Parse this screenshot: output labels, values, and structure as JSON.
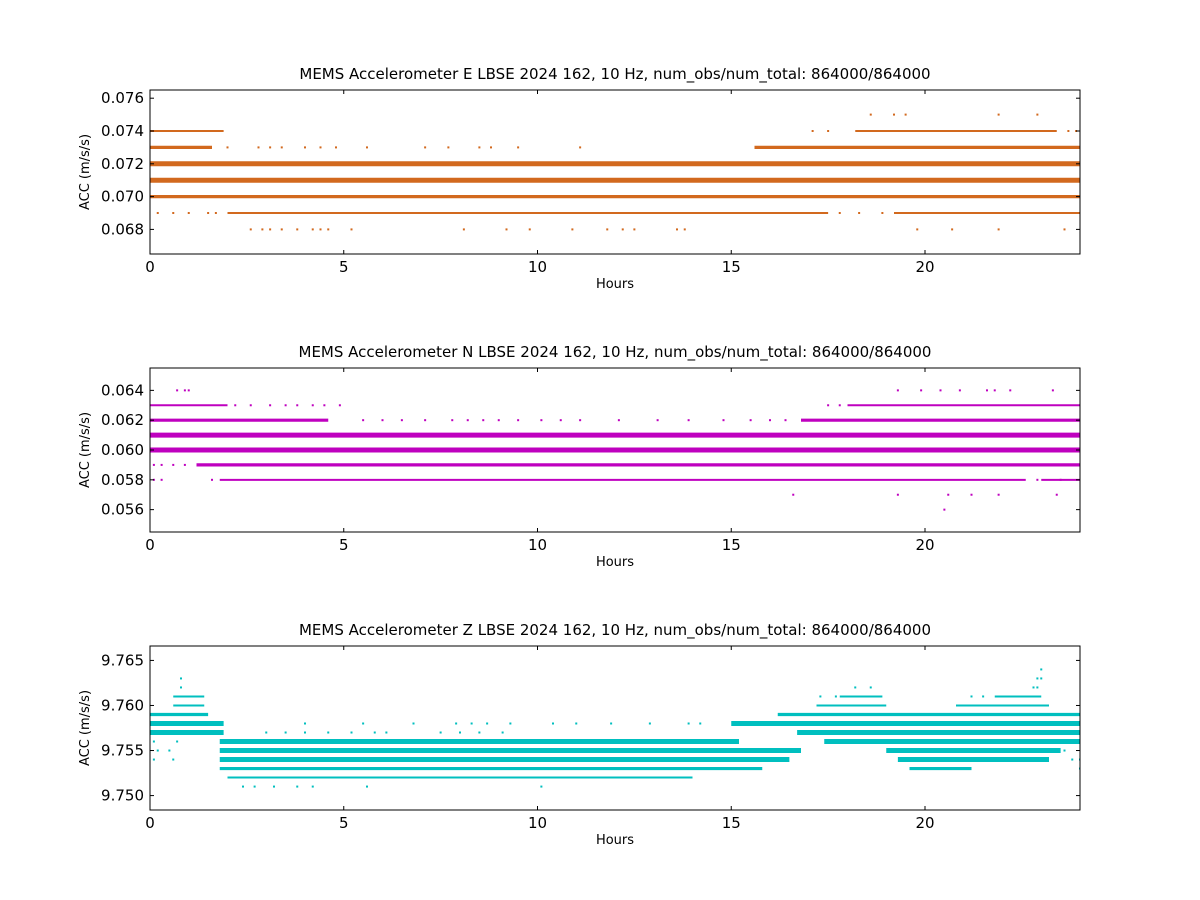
{
  "chart_data": [
    {
      "type": "scatter",
      "title": "MEMS Accelerometer E LBSE 2024 162, 10 Hz, num_obs/num_total: 864000/864000",
      "xlabel": "Hours",
      "ylabel": "ACC (m/s/s)",
      "xlim": [
        0,
        24
      ],
      "ylim": [
        0.0665,
        0.0765
      ],
      "xticks": [
        0,
        5,
        10,
        15,
        20
      ],
      "yticks": [
        0.068,
        0.07,
        0.072,
        0.074,
        0.076
      ],
      "xtick_labels": [
        "0",
        "5",
        "10",
        "15",
        "20"
      ],
      "ytick_labels": [
        "0.068",
        "0.070",
        "0.072",
        "0.074",
        "0.076"
      ],
      "color": "#d2691e",
      "grid": false,
      "series": [
        {
          "levels": [
            {
              "y": 0.071,
              "segments": [
                [
                  0,
                  24
                ]
              ],
              "weight": "heavy"
            },
            {
              "y": 0.072,
              "segments": [
                [
                  0,
                  24
                ]
              ],
              "weight": "heavy"
            },
            {
              "y": 0.07,
              "segments": [
                [
                  0,
                  24
                ]
              ],
              "weight": "medium"
            },
            {
              "y": 0.073,
              "segments": [
                [
                  0,
                  1.6
                ],
                [
                  15.6,
                  24
                ]
              ],
              "weight": "medium"
            },
            {
              "y": 0.069,
              "segments": [
                [
                  2.0,
                  17.5
                ],
                [
                  19.2,
                  24
                ]
              ],
              "weight": "light"
            },
            {
              "y": 0.074,
              "segments": [
                [
                  0,
                  1.9
                ],
                [
                  18.2,
                  23.4
                ]
              ],
              "weight": "light"
            }
          ],
          "points": [
            [
              0.2,
              0.069
            ],
            [
              0.6,
              0.069
            ],
            [
              1.0,
              0.069
            ],
            [
              1.5,
              0.069
            ],
            [
              1.7,
              0.069
            ],
            [
              17.8,
              0.069
            ],
            [
              18.3,
              0.069
            ],
            [
              18.9,
              0.069
            ],
            [
              2.0,
              0.073
            ],
            [
              2.8,
              0.073
            ],
            [
              3.1,
              0.073
            ],
            [
              3.4,
              0.073
            ],
            [
              4.0,
              0.073
            ],
            [
              4.4,
              0.073
            ],
            [
              4.8,
              0.073
            ],
            [
              5.6,
              0.073
            ],
            [
              7.1,
              0.073
            ],
            [
              7.7,
              0.073
            ],
            [
              8.5,
              0.073
            ],
            [
              8.8,
              0.073
            ],
            [
              9.5,
              0.073
            ],
            [
              11.1,
              0.073
            ],
            [
              17.1,
              0.074
            ],
            [
              17.5,
              0.074
            ],
            [
              23.7,
              0.074
            ],
            [
              23.9,
              0.074
            ],
            [
              18.6,
              0.075
            ],
            [
              19.2,
              0.075
            ],
            [
              19.5,
              0.075
            ],
            [
              21.9,
              0.075
            ],
            [
              22.9,
              0.075
            ],
            [
              2.6,
              0.068
            ],
            [
              2.9,
              0.068
            ],
            [
              3.1,
              0.068
            ],
            [
              3.4,
              0.068
            ],
            [
              3.8,
              0.068
            ],
            [
              4.2,
              0.068
            ],
            [
              4.4,
              0.068
            ],
            [
              4.6,
              0.068
            ],
            [
              5.2,
              0.068
            ],
            [
              8.1,
              0.068
            ],
            [
              9.2,
              0.068
            ],
            [
              9.8,
              0.068
            ],
            [
              10.9,
              0.068
            ],
            [
              11.8,
              0.068
            ],
            [
              12.2,
              0.068
            ],
            [
              12.5,
              0.068
            ],
            [
              13.6,
              0.068
            ],
            [
              13.8,
              0.068
            ],
            [
              19.8,
              0.068
            ],
            [
              20.7,
              0.068
            ],
            [
              21.9,
              0.068
            ],
            [
              23.6,
              0.068
            ]
          ]
        }
      ]
    },
    {
      "type": "scatter",
      "title": "MEMS Accelerometer N LBSE 2024 162, 10 Hz, num_obs/num_total: 864000/864000",
      "xlabel": "Hours",
      "ylabel": "ACC (m/s/s)",
      "xlim": [
        0,
        24
      ],
      "ylim": [
        0.0545,
        0.0655
      ],
      "xticks": [
        0,
        5,
        10,
        15,
        20
      ],
      "yticks": [
        0.056,
        0.058,
        0.06,
        0.062,
        0.064
      ],
      "xtick_labels": [
        "0",
        "5",
        "10",
        "15",
        "20"
      ],
      "ytick_labels": [
        "0.056",
        "0.058",
        "0.060",
        "0.062",
        "0.064"
      ],
      "color": "#bf00bf",
      "grid": false,
      "series": [
        {
          "levels": [
            {
              "y": 0.06,
              "segments": [
                [
                  0,
                  24
                ]
              ],
              "weight": "heavy"
            },
            {
              "y": 0.061,
              "segments": [
                [
                  0,
                  24
                ]
              ],
              "weight": "heavy"
            },
            {
              "y": 0.059,
              "segments": [
                [
                  1.2,
                  24
                ]
              ],
              "weight": "medium"
            },
            {
              "y": 0.062,
              "segments": [
                [
                  0,
                  4.6
                ],
                [
                  16.8,
                  24
                ]
              ],
              "weight": "medium"
            },
            {
              "y": 0.058,
              "segments": [
                [
                  1.8,
                  22.6
                ],
                [
                  23.0,
                  24
                ]
              ],
              "weight": "light"
            },
            {
              "y": 0.063,
              "segments": [
                [
                  0,
                  2.0
                ],
                [
                  18.0,
                  24
                ]
              ],
              "weight": "light"
            }
          ],
          "points": [
            [
              0.1,
              0.059
            ],
            [
              0.3,
              0.059
            ],
            [
              0.6,
              0.059
            ],
            [
              0.9,
              0.059
            ],
            [
              0.1,
              0.058
            ],
            [
              0.3,
              0.058
            ],
            [
              1.6,
              0.058
            ],
            [
              22.9,
              0.058
            ],
            [
              23.5,
              0.058
            ],
            [
              0.7,
              0.064
            ],
            [
              0.9,
              0.064
            ],
            [
              1.0,
              0.064
            ],
            [
              19.3,
              0.064
            ],
            [
              19.9,
              0.064
            ],
            [
              20.4,
              0.064
            ],
            [
              20.9,
              0.064
            ],
            [
              21.6,
              0.064
            ],
            [
              21.8,
              0.064
            ],
            [
              22.2,
              0.064
            ],
            [
              23.3,
              0.064
            ],
            [
              2.2,
              0.063
            ],
            [
              2.6,
              0.063
            ],
            [
              3.1,
              0.063
            ],
            [
              3.5,
              0.063
            ],
            [
              3.8,
              0.063
            ],
            [
              4.2,
              0.063
            ],
            [
              4.5,
              0.063
            ],
            [
              4.9,
              0.063
            ],
            [
              17.5,
              0.063
            ],
            [
              17.8,
              0.063
            ],
            [
              5.5,
              0.062
            ],
            [
              6.0,
              0.062
            ],
            [
              6.5,
              0.062
            ],
            [
              7.1,
              0.062
            ],
            [
              7.8,
              0.062
            ],
            [
              8.2,
              0.062
            ],
            [
              8.6,
              0.062
            ],
            [
              9.0,
              0.062
            ],
            [
              9.5,
              0.062
            ],
            [
              10.1,
              0.062
            ],
            [
              10.6,
              0.062
            ],
            [
              11.1,
              0.062
            ],
            [
              12.1,
              0.062
            ],
            [
              13.1,
              0.062
            ],
            [
              13.9,
              0.062
            ],
            [
              14.8,
              0.062
            ],
            [
              15.5,
              0.062
            ],
            [
              16.0,
              0.062
            ],
            [
              16.4,
              0.062
            ],
            [
              16.6,
              0.057
            ],
            [
              19.3,
              0.057
            ],
            [
              20.6,
              0.057
            ],
            [
              21.2,
              0.057
            ],
            [
              21.9,
              0.057
            ],
            [
              23.4,
              0.057
            ],
            [
              20.5,
              0.056
            ]
          ]
        }
      ]
    },
    {
      "type": "scatter",
      "title": "MEMS Accelerometer Z LBSE 2024 162, 10 Hz, num_obs/num_total: 864000/864000",
      "xlabel": "Hours",
      "ylabel": "ACC (m/s/s)",
      "xlim": [
        0,
        24
      ],
      "ylim": [
        9.7484,
        9.7666
      ],
      "xticks": [
        0,
        5,
        10,
        15,
        20
      ],
      "yticks": [
        9.75,
        9.755,
        9.76,
        9.765
      ],
      "xtick_labels": [
        "0",
        "5",
        "10",
        "15",
        "20"
      ],
      "ytick_labels": [
        "9.750",
        "9.755",
        "9.760",
        "9.765"
      ],
      "color": "#00bfbf",
      "grid": false,
      "series": [
        {
          "levels": [
            {
              "y": 9.755,
              "segments": [
                [
                  1.8,
                  16.8
                ],
                [
                  19.0,
                  23.5
                ]
              ],
              "weight": "heavy"
            },
            {
              "y": 9.754,
              "segments": [
                [
                  1.8,
                  16.5
                ],
                [
                  19.3,
                  23.2
                ]
              ],
              "weight": "heavy"
            },
            {
              "y": 9.756,
              "segments": [
                [
                  1.8,
                  15.2
                ],
                [
                  17.4,
                  24
                ]
              ],
              "weight": "heavy"
            },
            {
              "y": 9.757,
              "segments": [
                [
                  0,
                  1.9
                ],
                [
                  16.7,
                  24
                ]
              ],
              "weight": "heavy"
            },
            {
              "y": 9.758,
              "segments": [
                [
                  0,
                  1.9
                ],
                [
                  15.0,
                  24
                ]
              ],
              "weight": "heavy"
            },
            {
              "y": 9.753,
              "segments": [
                [
                  1.8,
                  15.8
                ],
                [
                  19.6,
                  21.2
                ]
              ],
              "weight": "medium"
            },
            {
              "y": 9.752,
              "segments": [
                [
                  2.0,
                  14.0
                ]
              ],
              "weight": "light"
            },
            {
              "y": 9.759,
              "segments": [
                [
                  0,
                  1.5
                ],
                [
                  16.2,
                  24
                ]
              ],
              "weight": "medium"
            },
            {
              "y": 9.76,
              "segments": [
                [
                  0.6,
                  1.4
                ],
                [
                  17.2,
                  19.0
                ],
                [
                  20.8,
                  23.2
                ]
              ],
              "weight": "light"
            },
            {
              "y": 9.761,
              "segments": [
                [
                  0.6,
                  1.4
                ],
                [
                  17.8,
                  18.9
                ],
                [
                  21.8,
                  23.0
                ]
              ],
              "weight": "light"
            }
          ],
          "points": [
            [
              0.1,
              9.756
            ],
            [
              0.2,
              9.755
            ],
            [
              0.5,
              9.755
            ],
            [
              0.7,
              9.756
            ],
            [
              0.1,
              9.754
            ],
            [
              0.6,
              9.754
            ],
            [
              23.6,
              9.755
            ],
            [
              23.8,
              9.754
            ],
            [
              24.0,
              9.754
            ],
            [
              24.0,
              9.753
            ],
            [
              2.4,
              9.751
            ],
            [
              2.7,
              9.751
            ],
            [
              3.2,
              9.751
            ],
            [
              3.8,
              9.751
            ],
            [
              4.2,
              9.751
            ],
            [
              5.6,
              9.751
            ],
            [
              10.1,
              9.751
            ],
            [
              3.0,
              9.757
            ],
            [
              3.5,
              9.757
            ],
            [
              4.0,
              9.757
            ],
            [
              4.6,
              9.757
            ],
            [
              5.2,
              9.757
            ],
            [
              5.8,
              9.757
            ],
            [
              6.1,
              9.757
            ],
            [
              7.5,
              9.757
            ],
            [
              8.0,
              9.757
            ],
            [
              8.5,
              9.757
            ],
            [
              9.1,
              9.757
            ],
            [
              4.0,
              9.758
            ],
            [
              5.5,
              9.758
            ],
            [
              6.8,
              9.758
            ],
            [
              7.9,
              9.758
            ],
            [
              8.3,
              9.758
            ],
            [
              8.7,
              9.758
            ],
            [
              9.3,
              9.758
            ],
            [
              10.4,
              9.758
            ],
            [
              11.0,
              9.758
            ],
            [
              11.9,
              9.758
            ],
            [
              12.9,
              9.758
            ],
            [
              13.9,
              9.758
            ],
            [
              14.2,
              9.758
            ],
            [
              0.8,
              9.763
            ],
            [
              0.8,
              9.762
            ],
            [
              18.2,
              9.762
            ],
            [
              18.6,
              9.762
            ],
            [
              22.8,
              9.762
            ],
            [
              22.9,
              9.763
            ],
            [
              23.0,
              9.764
            ],
            [
              23.0,
              9.763
            ],
            [
              22.9,
              9.762
            ],
            [
              17.3,
              9.761
            ],
            [
              17.7,
              9.761
            ],
            [
              21.2,
              9.761
            ],
            [
              21.5,
              9.761
            ]
          ]
        }
      ]
    }
  ]
}
